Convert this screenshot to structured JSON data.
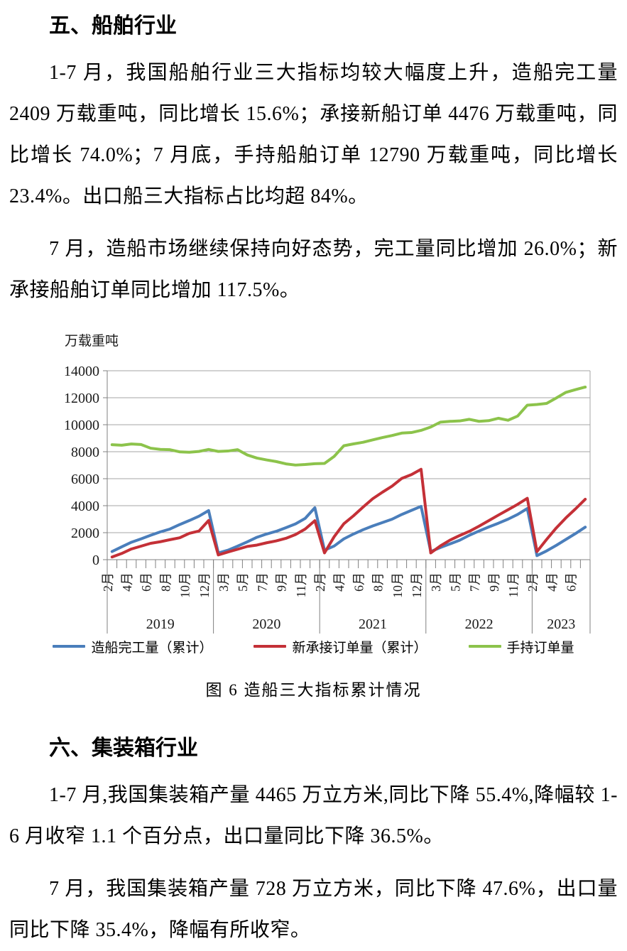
{
  "section_ship": {
    "heading": "五、船舶行业",
    "paragraphs": [
      "1-7 月，我国船舶行业三大指标均较大幅度上升，造船完工量 2409 万载重吨，同比增长 15.6%；承接新船订单 4476 万载重吨，同比增长 74.0%；7 月底，手持船舶订单 12790 万载重吨，同比增长 23.4%。出口船三大指标占比均超 84%。",
      "7 月，造船市场继续保持向好态势，完工量同比增加 26.0%；新承接船舶订单同比增加 117.5%。"
    ]
  },
  "figure": {
    "unit_label": "万载重吨",
    "caption": "图 6 造船三大指标累计情况"
  },
  "chart_data": {
    "type": "line",
    "title": "图 6 造船三大指标累计情况",
    "ylabel": "万载重吨",
    "ylim": [
      0,
      14000
    ],
    "ytick_step": 2000,
    "grid": true,
    "legend_position": "bottom",
    "axis_color": "#808080",
    "grid_color": "#A6A6A6",
    "visible_month_ticks": [
      "2月",
      "4月",
      "6月",
      "8月",
      "10月",
      "12月",
      "3月",
      "5月",
      "7月",
      "9月",
      "11月",
      "2月",
      "4月",
      "6月",
      "8月",
      "10月",
      "12月",
      "3月",
      "5月",
      "7月",
      "9月",
      "11月",
      "2月",
      "4月",
      "6月"
    ],
    "year_bands": [
      {
        "label": "2019",
        "months": 11
      },
      {
        "label": "2020",
        "months": 11
      },
      {
        "label": "2021",
        "months": 11
      },
      {
        "label": "2022",
        "months": 11
      },
      {
        "label": "2023",
        "months": 6
      }
    ],
    "categories": [
      "2019-2月",
      "2019-3月",
      "2019-4月",
      "2019-5月",
      "2019-6月",
      "2019-7月",
      "2019-8月",
      "2019-9月",
      "2019-10月",
      "2019-11月",
      "2019-12月",
      "2020-2月",
      "2020-3月",
      "2020-4月",
      "2020-5月",
      "2020-6月",
      "2020-7月",
      "2020-8月",
      "2020-9月",
      "2020-10月",
      "2020-11月",
      "2020-12月",
      "2021-2月",
      "2021-3月",
      "2021-4月",
      "2021-5月",
      "2021-6月",
      "2021-7月",
      "2021-8月",
      "2021-9月",
      "2021-10月",
      "2021-11月",
      "2021-12月",
      "2022-2月",
      "2022-3月",
      "2022-4月",
      "2022-5月",
      "2022-6月",
      "2022-7月",
      "2022-8月",
      "2022-9月",
      "2022-10月",
      "2022-11月",
      "2022-12月",
      "2023-2月",
      "2023-3月",
      "2023-4月",
      "2023-5月",
      "2023-6月",
      "2023-7月"
    ],
    "series": [
      {
        "name": "造船完工量（累计）",
        "color": "#4A7EBB",
        "values": [
          600,
          950,
          1290,
          1540,
          1810,
          2060,
          2270,
          2600,
          2900,
          3220,
          3640,
          500,
          700,
          1000,
          1320,
          1660,
          1900,
          2100,
          2370,
          2650,
          3060,
          3850,
          700,
          1010,
          1540,
          1900,
          2220,
          2500,
          2750,
          3000,
          3350,
          3650,
          3950,
          600,
          900,
          1170,
          1440,
          1810,
          2120,
          2420,
          2700,
          3000,
          3350,
          3790,
          300,
          650,
          1060,
          1500,
          1940,
          2409
        ]
      },
      {
        "name": "新承接订单量（累计）",
        "color": "#C43037",
        "values": [
          200,
          460,
          790,
          1000,
          1210,
          1330,
          1480,
          1620,
          1950,
          2120,
          2900,
          350,
          570,
          770,
          980,
          1080,
          1250,
          1390,
          1580,
          1860,
          2270,
          2890,
          500,
          1700,
          2660,
          3250,
          3900,
          4520,
          5000,
          5450,
          6020,
          6300,
          6700,
          500,
          1020,
          1450,
          1790,
          2100,
          2480,
          2890,
          3300,
          3700,
          4100,
          4550,
          600,
          1500,
          2350,
          3100,
          3770,
          4476
        ]
      },
      {
        "name": "手持订单量",
        "color": "#8CC34B",
        "values": [
          8520,
          8480,
          8570,
          8530,
          8260,
          8170,
          8150,
          7990,
          7960,
          8020,
          8170,
          8020,
          8050,
          8150,
          7760,
          7530,
          7390,
          7270,
          7100,
          7010,
          7050,
          7110,
          7130,
          7650,
          8440,
          8580,
          8700,
          8880,
          9050,
          9200,
          9380,
          9420,
          9580,
          9830,
          10190,
          10250,
          10280,
          10400,
          10250,
          10300,
          10480,
          10330,
          10640,
          11450,
          11500,
          11580,
          11980,
          12400,
          12600,
          12790
        ]
      }
    ]
  },
  "section_container": {
    "heading": "六、集装箱行业",
    "paragraphs": [
      "1-7 月,我国集装箱产量 4465 万立方米,同比下降 55.4%,降幅较 1-6 月收窄 1.1 个百分点，出口量同比下降 36.5%。",
      "7 月，我国集装箱产量 728 万立方米，同比下降 47.6%，出口量同比下降 35.4%，降幅有所收窄。"
    ]
  }
}
